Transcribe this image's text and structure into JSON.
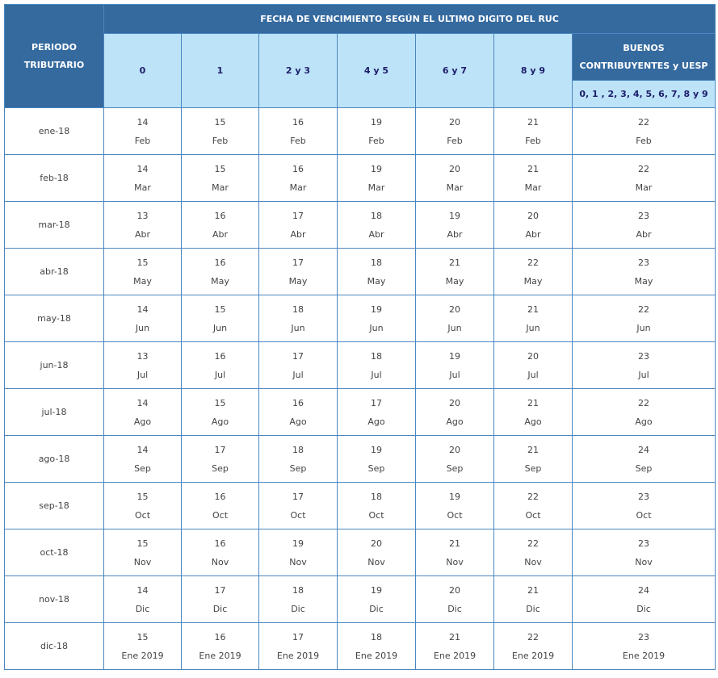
{
  "header": {
    "title": "FECHA DE VENCIMIENTO SEGÚN EL ULTIMO DIGITO DEL RUC",
    "period": "PERIODO TRIBUTARIO",
    "digits": [
      "0",
      "1",
      "2 y 3",
      "4 y 5",
      "6 y 7",
      "8 y 9"
    ],
    "good": "BUENOS CONTRIBUYENTES y UESP",
    "good_digits": "0, 1 , 2, 3, 4, 5, 6, 7, 8 y 9"
  },
  "table": {
    "rows": [
      {
        "period": "ene-18",
        "days": [
          "14",
          "15",
          "16",
          "19",
          "20",
          "21",
          "22"
        ],
        "month": "Feb"
      },
      {
        "period": "feb-18",
        "days": [
          "14",
          "15",
          "16",
          "19",
          "20",
          "21",
          "22"
        ],
        "month": "Mar"
      },
      {
        "period": "mar-18",
        "days": [
          "13",
          "16",
          "17",
          "18",
          "19",
          "20",
          "23"
        ],
        "month": "Abr"
      },
      {
        "period": "abr-18",
        "days": [
          "15",
          "16",
          "17",
          "18",
          "21",
          "22",
          "23"
        ],
        "month": "May"
      },
      {
        "period": "may-18",
        "days": [
          "14",
          "15",
          "18",
          "19",
          "20",
          "21",
          "22"
        ],
        "month": "Jun"
      },
      {
        "period": "jun-18",
        "days": [
          "13",
          "16",
          "17",
          "18",
          "19",
          "20",
          "23"
        ],
        "month": "Jul"
      },
      {
        "period": "jul-18",
        "days": [
          "14",
          "15",
          "16",
          "17",
          "20",
          "21",
          "22"
        ],
        "month": "Ago"
      },
      {
        "period": "ago-18",
        "days": [
          "14",
          "17",
          "18",
          "19",
          "20",
          "21",
          "24"
        ],
        "month": "Sep"
      },
      {
        "period": "sep-18",
        "days": [
          "15",
          "16",
          "17",
          "18",
          "19",
          "22",
          "23"
        ],
        "month": "Oct"
      },
      {
        "period": "oct-18",
        "days": [
          "15",
          "16",
          "19",
          "20",
          "21",
          "22",
          "23"
        ],
        "month": "Nov"
      },
      {
        "period": "nov-18",
        "days": [
          "14",
          "17",
          "18",
          "19",
          "20",
          "21",
          "24"
        ],
        "month": "Dic"
      },
      {
        "period": "dic-18",
        "days": [
          "15",
          "16",
          "17",
          "18",
          "21",
          "22",
          "23"
        ],
        "month": "Ene 2019"
      }
    ]
  }
}
